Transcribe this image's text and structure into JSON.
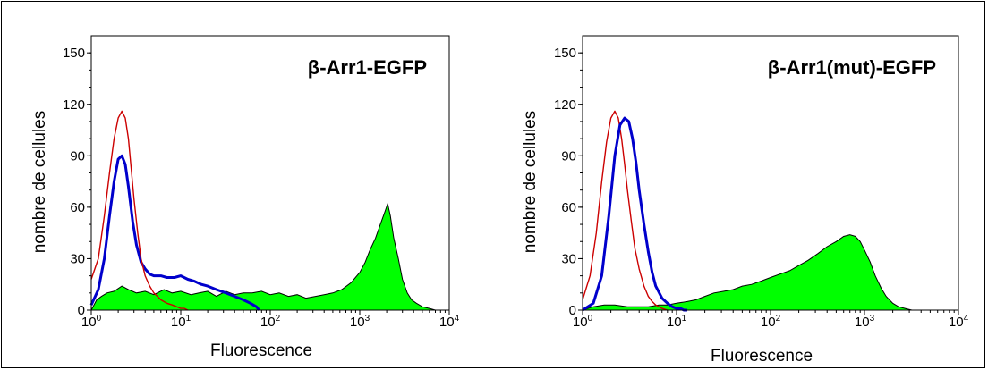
{
  "chart_data": [
    {
      "type": "area",
      "title": "β-Arr1-EGFP",
      "xlabel": "Fluorescence",
      "ylabel": "nombre de cellules",
      "xscale": "log",
      "xlim": [
        1,
        10000
      ],
      "ylim": [
        0,
        160
      ],
      "yticks": [
        0,
        30,
        60,
        90,
        120,
        150
      ],
      "xticks": [
        {
          "base": "10",
          "exp": "0"
        },
        {
          "base": "10",
          "exp": "1"
        },
        {
          "base": "10",
          "exp": "2"
        },
        {
          "base": "10",
          "exp": "3"
        },
        {
          "base": "10",
          "exp": "4"
        }
      ],
      "series": [
        {
          "style": "filled",
          "color": "#00ff00",
          "edge": "#000000",
          "x": [
            1.0,
            1.15,
            1.3,
            1.5,
            1.8,
            2.2,
            2.6,
            3.2,
            4.0,
            5.0,
            6.5,
            8.0,
            10,
            13,
            16,
            20,
            25,
            32,
            40,
            50,
            63,
            80,
            100,
            126,
            160,
            200,
            250,
            320,
            400,
            500,
            630,
            800,
            1000,
            1150,
            1300,
            1500,
            1700,
            1900,
            2050,
            2200,
            2400,
            2700,
            3000,
            3400,
            3800,
            4300,
            5000,
            6000,
            7000
          ],
          "y": [
            0,
            6,
            8,
            10,
            11,
            14,
            12,
            10,
            11,
            9,
            12,
            10,
            11,
            9,
            10,
            11,
            8,
            11,
            9,
            10,
            10,
            11,
            9,
            10,
            8,
            9,
            7,
            8,
            9,
            10,
            12,
            16,
            22,
            28,
            35,
            42,
            50,
            57,
            62,
            55,
            42,
            30,
            18,
            10,
            6,
            4,
            2,
            1,
            0
          ]
        },
        {
          "style": "line",
          "color": "#0000cc",
          "x": [
            1.0,
            1.2,
            1.4,
            1.6,
            1.8,
            2.0,
            2.2,
            2.4,
            2.6,
            2.9,
            3.2,
            3.6,
            4.0,
            4.5,
            5.0,
            6.0,
            7.0,
            8.5,
            10,
            12,
            14,
            17,
            20,
            25,
            32,
            40,
            50,
            60,
            70,
            75
          ],
          "y": [
            3,
            12,
            30,
            55,
            75,
            88,
            90,
            85,
            72,
            52,
            38,
            28,
            24,
            21,
            20,
            20,
            19,
            19,
            20,
            18,
            17,
            15,
            14,
            12,
            10,
            8,
            6,
            4,
            2,
            0
          ]
        },
        {
          "style": "line",
          "color": "#cc0000",
          "x": [
            1.0,
            1.2,
            1.4,
            1.6,
            1.8,
            2.0,
            2.2,
            2.4,
            2.6,
            2.8,
            3.0,
            3.3,
            3.6,
            4.0,
            4.5,
            5.0,
            5.5,
            6.0,
            7.0,
            8.0,
            9.0,
            10,
            11,
            12
          ],
          "y": [
            18,
            30,
            55,
            80,
            100,
            112,
            116,
            112,
            100,
            82,
            65,
            45,
            30,
            20,
            14,
            10,
            8,
            6,
            4,
            3,
            2,
            1,
            1,
            0
          ]
        }
      ]
    },
    {
      "type": "area",
      "title": "β-Arr1(mut)-EGFP",
      "xlabel": "Fluorescence",
      "ylabel": "nombre de cellules",
      "xscale": "log",
      "xlim": [
        1,
        10000
      ],
      "ylim": [
        0,
        160
      ],
      "yticks": [
        0,
        30,
        60,
        90,
        120,
        150
      ],
      "xticks": [
        {
          "base": "10",
          "exp": "0"
        },
        {
          "base": "10",
          "exp": "1"
        },
        {
          "base": "10",
          "exp": "2"
        },
        {
          "base": "10",
          "exp": "3"
        },
        {
          "base": "10",
          "exp": "4"
        }
      ],
      "series": [
        {
          "style": "filled",
          "color": "#00ff00",
          "edge": "#000000",
          "x": [
            1.0,
            1.3,
            1.7,
            2.2,
            3.0,
            4.0,
            5.0,
            6.5,
            8.0,
            10,
            13,
            16,
            20,
            25,
            32,
            40,
            50,
            63,
            80,
            100,
            126,
            160,
            200,
            250,
            320,
            400,
            500,
            600,
            700,
            800,
            900,
            1000,
            1150,
            1300,
            1500,
            1700,
            2000,
            2300,
            2700,
            3200,
            4000
          ],
          "y": [
            0,
            2,
            3,
            3,
            2,
            2,
            2,
            3,
            3,
            4,
            5,
            6,
            8,
            10,
            11,
            12,
            14,
            15,
            17,
            19,
            21,
            23,
            26,
            29,
            33,
            37,
            40,
            43,
            44,
            43,
            40,
            35,
            28,
            20,
            13,
            8,
            4,
            2,
            1,
            0,
            0
          ]
        },
        {
          "style": "line",
          "color": "#cc0000",
          "x": [
            1.0,
            1.2,
            1.4,
            1.6,
            1.8,
            2.0,
            2.2,
            2.4,
            2.6,
            2.8,
            3.0,
            3.3,
            3.6,
            4.0,
            4.5,
            5.0,
            5.5,
            6.0,
            7.0,
            8.0
          ],
          "y": [
            6,
            20,
            45,
            75,
            98,
            112,
            116,
            112,
            100,
            85,
            70,
            52,
            36,
            24,
            14,
            8,
            5,
            3,
            1,
            0
          ]
        },
        {
          "style": "line",
          "color": "#0000cc",
          "x": [
            1.0,
            1.3,
            1.6,
            1.9,
            2.2,
            2.5,
            2.8,
            3.1,
            3.4,
            3.7,
            4.0,
            4.5,
            5.0,
            5.5,
            6.0,
            7.0,
            8.0,
            9.0,
            10,
            11,
            12,
            13
          ],
          "y": [
            0,
            4,
            20,
            55,
            90,
            108,
            112,
            110,
            100,
            86,
            70,
            50,
            34,
            22,
            14,
            7,
            4,
            2,
            1,
            1,
            0,
            0
          ]
        }
      ]
    }
  ]
}
